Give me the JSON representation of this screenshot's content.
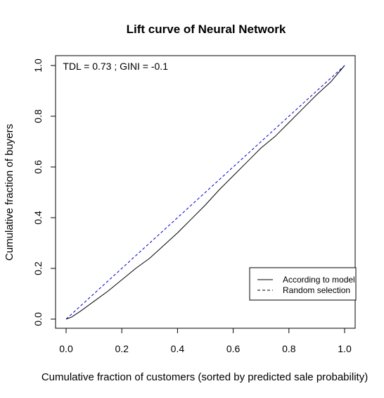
{
  "chart_data": {
    "type": "line",
    "title": "Lift curve of Neural Network",
    "xlabel": "Cumulative fraction of customers (sorted by predicted sale probability)",
    "ylabel": "Cumulative fraction of buyers",
    "xlim": [
      0,
      1
    ],
    "ylim": [
      0,
      1
    ],
    "xticks": [
      0,
      0.2,
      0.4,
      0.6,
      0.8,
      1
    ],
    "xtick_labels": [
      "0.0",
      "0.2",
      "0.4",
      "0.6",
      "0.8",
      "1.0"
    ],
    "yticks": [
      0,
      0.2,
      0.4,
      0.6,
      0.8,
      1
    ],
    "ytick_labels": [
      "0.0",
      "0.2",
      "0.4",
      "0.6",
      "0.8",
      "1.0"
    ],
    "grid": false,
    "legend_position": "bottom-right",
    "annotation": "TDL =  0.73 ; GINI =  -0.1",
    "series": [
      {
        "name": "According to model",
        "color": "#000000",
        "line_style": "solid",
        "x": [
          0,
          0.02,
          0.05,
          0.1,
          0.15,
          0.2,
          0.25,
          0.3,
          0.35,
          0.4,
          0.45,
          0.5,
          0.55,
          0.6,
          0.65,
          0.7,
          0.75,
          0.8,
          0.85,
          0.9,
          0.95,
          1.0
        ],
        "y": [
          0,
          0.008,
          0.03,
          0.07,
          0.11,
          0.155,
          0.2,
          0.24,
          0.29,
          0.34,
          0.395,
          0.45,
          0.51,
          0.565,
          0.62,
          0.675,
          0.72,
          0.775,
          0.83,
          0.885,
          0.935,
          1.0
        ]
      },
      {
        "name": "Random selection",
        "color": "#0000cd",
        "line_style": "dashed",
        "x": [
          0,
          1
        ],
        "y": [
          0,
          1
        ]
      }
    ]
  }
}
